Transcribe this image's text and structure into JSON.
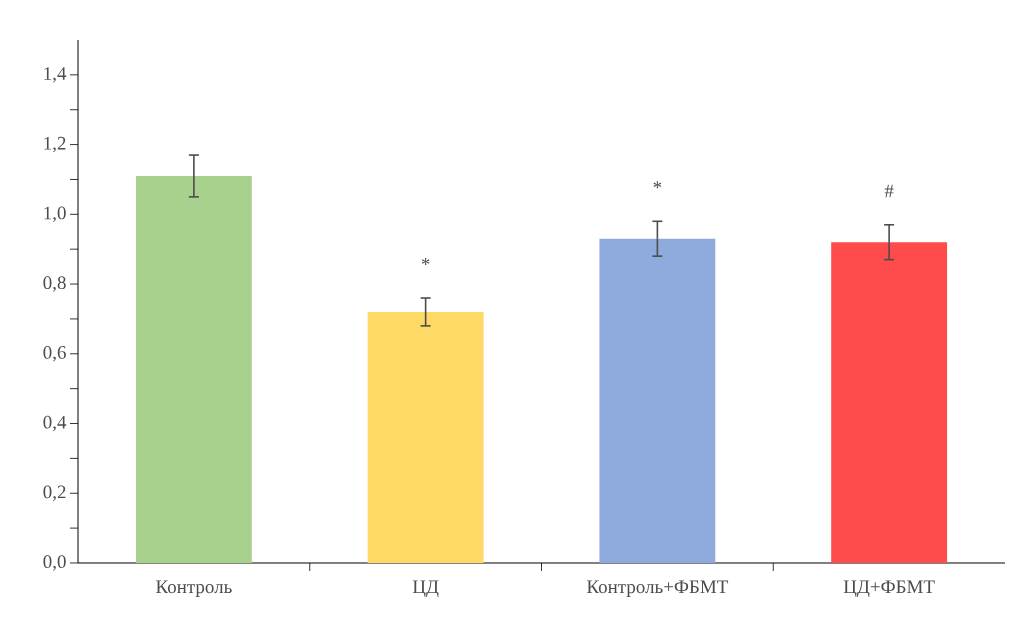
{
  "chart_data": {
    "type": "bar",
    "categories": [
      "Контроль",
      "ЦД",
      "Контроль+ФБМТ",
      "ЦД+ФБМТ"
    ],
    "values": [
      1.11,
      0.72,
      0.93,
      0.92
    ],
    "colors": [
      "#a9d18e",
      "#ffd966",
      "#8faadc",
      "#ff4b4b"
    ],
    "errors": [
      0.06,
      0.04,
      0.05,
      0.05
    ],
    "ylim": [
      0,
      1.5
    ],
    "yticks": [
      {
        "value": 0,
        "label": "0,0"
      },
      {
        "value": 0.2,
        "label": "0,2"
      },
      {
        "value": 0.4,
        "label": "0,4"
      },
      {
        "value": 0.6,
        "label": "0,6"
      },
      {
        "value": 0.8,
        "label": "0,8"
      },
      {
        "value": 1.0,
        "label": "1,0"
      },
      {
        "value": 1.2,
        "label": "1,2"
      },
      {
        "value": 1.4,
        "label": "1,4"
      }
    ],
    "annotations": [
      "*",
      "*",
      "#"
    ],
    "grid": false
  }
}
